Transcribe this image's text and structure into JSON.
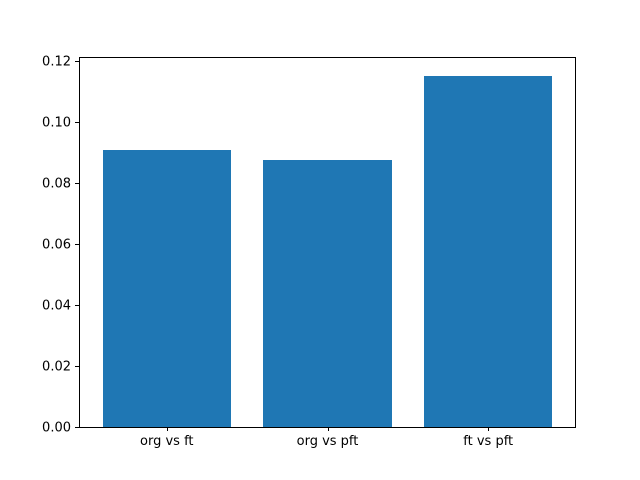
{
  "chart_data": {
    "type": "bar",
    "categories": [
      "org vs ft",
      "org vs pft",
      "ft vs pft"
    ],
    "values": [
      0.0908,
      0.0876,
      0.1153
    ],
    "title": "",
    "xlabel": "",
    "ylabel": "",
    "ylim": [
      0,
      0.1211
    ],
    "xlim": [
      -0.54,
      2.54
    ],
    "yticks": [
      0.0,
      0.02,
      0.04,
      0.06,
      0.08,
      0.1,
      0.12
    ],
    "ytick_labels": [
      "0.00",
      "0.02",
      "0.04",
      "0.06",
      "0.08",
      "0.10",
      "0.12"
    ],
    "bar_color": "#1f77b4",
    "bar_width": 0.8,
    "grid": false,
    "legend": null,
    "spine_color": "#000000",
    "background_color": "#ffffff"
  }
}
